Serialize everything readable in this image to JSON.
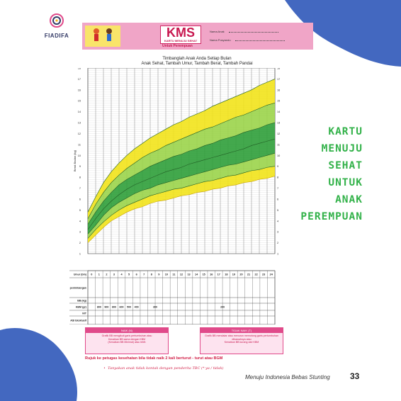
{
  "logo": {
    "text": "FIADIFA"
  },
  "kms": {
    "title": "KMS",
    "subtitle": "KARTU MENUJU SEHAT",
    "gender_label": "Untuk Perempuan",
    "field_child": "Nama Anak",
    "field_posyandu": "Nama Posyandu"
  },
  "chart": {
    "title_line1": "Timbanglah Anak Anda Setiap Bulan",
    "title_line2": "Anak Sehat, Tambah Umur, Tambah Berat, Tambah Pandai",
    "ylabel": "Berat Badan (kg)"
  },
  "chart_data": {
    "type": "area",
    "title": "Timbanglah Anak Anda Setiap Bulan",
    "ylabel": "Berat Badan (kg)",
    "xlabel": "Umur (bln)",
    "x": [
      0,
      1,
      2,
      3,
      4,
      5,
      6,
      7,
      8,
      9,
      10,
      11,
      12,
      13,
      14,
      15,
      16,
      17,
      18,
      19,
      20,
      21,
      22,
      23,
      24
    ],
    "ylim": [
      1,
      18
    ],
    "series": [
      {
        "values": [
          2.0,
          2.7,
          3.4,
          4.0,
          4.4,
          4.8,
          5.1,
          5.3,
          5.6,
          5.8,
          5.9,
          6.1,
          6.3,
          6.4,
          6.6,
          6.7,
          6.9,
          7.0,
          7.2,
          7.3,
          7.5,
          7.6,
          7.8,
          7.9,
          8.1
        ]
      },
      {
        "values": [
          2.4,
          3.2,
          3.9,
          4.5,
          5.0,
          5.4,
          5.7,
          6.0,
          6.3,
          6.5,
          6.7,
          6.9,
          7.0,
          7.2,
          7.4,
          7.6,
          7.7,
          7.9,
          8.1,
          8.2,
          8.4,
          8.6,
          8.7,
          8.9,
          9.0
        ]
      },
      {
        "values": [
          2.8,
          3.6,
          4.5,
          5.2,
          5.7,
          6.1,
          6.5,
          6.8,
          7.0,
          7.3,
          7.5,
          7.7,
          7.9,
          8.1,
          8.3,
          8.5,
          8.7,
          8.9,
          9.1,
          9.2,
          9.4,
          9.6,
          9.8,
          10.0,
          10.2
        ]
      },
      {
        "values": [
          3.2,
          4.2,
          5.1,
          5.8,
          6.4,
          6.9,
          7.3,
          7.6,
          7.9,
          8.2,
          8.5,
          8.7,
          8.9,
          9.2,
          9.4,
          9.6,
          9.8,
          10.0,
          10.2,
          10.4,
          10.6,
          10.9,
          11.1,
          11.3,
          11.5
        ]
      },
      {
        "values": [
          3.7,
          4.8,
          5.8,
          6.6,
          7.3,
          7.8,
          8.2,
          8.6,
          9.0,
          9.3,
          9.6,
          9.9,
          10.1,
          10.4,
          10.6,
          10.9,
          11.1,
          11.4,
          11.6,
          11.8,
          12.1,
          12.3,
          12.5,
          12.8,
          13.0
        ]
      },
      {
        "values": [
          4.2,
          5.5,
          6.6,
          7.5,
          8.2,
          8.8,
          9.3,
          9.8,
          10.2,
          10.5,
          10.9,
          11.2,
          11.5,
          11.8,
          12.1,
          12.4,
          12.6,
          12.9,
          13.2,
          13.5,
          13.7,
          14.0,
          14.3,
          14.6,
          14.8
        ]
      },
      {
        "values": [
          4.8,
          6.2,
          7.5,
          8.5,
          9.3,
          10.0,
          10.6,
          11.1,
          11.6,
          12.0,
          12.4,
          12.8,
          13.1,
          13.5,
          13.8,
          14.1,
          14.5,
          14.8,
          15.1,
          15.4,
          15.7,
          16.0,
          16.4,
          16.7,
          17.0
        ]
      }
    ]
  },
  "axis": {
    "y_ticks": [
      "1",
      "2",
      "3",
      "4",
      "5",
      "6",
      "7",
      "8",
      "9",
      "10",
      "11",
      "12",
      "13",
      "14",
      "15",
      "16",
      "17",
      "18"
    ],
    "x_ticks": [
      "0",
      "1",
      "2",
      "3",
      "4",
      "5",
      "6",
      "7",
      "8",
      "9",
      "10",
      "11",
      "12",
      "13",
      "14",
      "15",
      "16",
      "17",
      "18",
      "19",
      "20",
      "21",
      "22",
      "23",
      "24"
    ]
  },
  "table": {
    "rows": [
      "Umur (bln)",
      "Bulan penimbangan",
      "BB (kg)",
      "KBM (gr)",
      "N/T",
      "ASI Eksklusif"
    ],
    "kbm_values": [
      "800",
      "900",
      "800",
      "600",
      "500",
      "400",
      "300",
      "200"
    ]
  },
  "notes": {
    "naik_head": "NAIK (N)",
    "naik_body1": "Grafik BB mengikuti garis pertumbuhan atau",
    "naik_body2": "Kenaikan BB sama dengan KBM",
    "naik_body3": "(Kenaikan BB Minimal) atau lebih",
    "tidak_head": "TIDAK NAIK (T)",
    "tidak_body1": "Grafik BB mendatar atau menurun memotong garis pertumbuhan dibawahnya atau",
    "tidak_body2": "Kenaikan BB kurang dari KBM",
    "rujuk": "Rujuk ke petugas kesehatan bila tidak naik 2 kali berturut - turut atau BGM",
    "tanyakan": "Tanyakan anak tidak kontak dengan penderita TBC (* ya / tidak)"
  },
  "side": {
    "lines": [
      "KARTU",
      "MENUJU",
      "SEHAT",
      "UNTUK",
      "ANAK",
      "PEREMPUAN"
    ]
  },
  "footer": {
    "text": "Menuju Indonesia Bebas Stunting",
    "page": "33"
  },
  "colors": {
    "blob": "#4368c0",
    "title_green": "#33b24a",
    "yellow": "#f2e31b",
    "light_green": "#9bd44a",
    "dark_green": "#2f9e3a"
  }
}
